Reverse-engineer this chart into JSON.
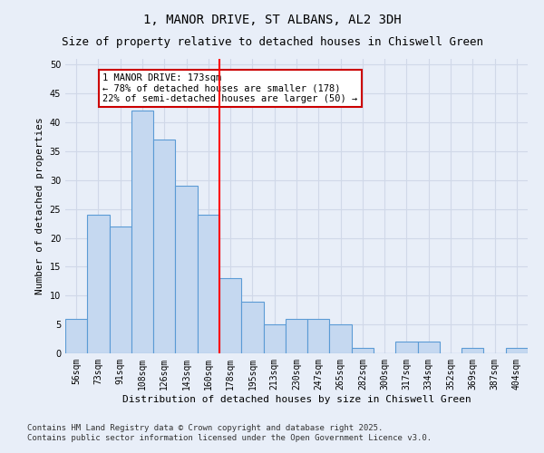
{
  "title1": "1, MANOR DRIVE, ST ALBANS, AL2 3DH",
  "title2": "Size of property relative to detached houses in Chiswell Green",
  "xlabel": "Distribution of detached houses by size in Chiswell Green",
  "ylabel": "Number of detached properties",
  "categories": [
    "56sqm",
    "73sqm",
    "91sqm",
    "108sqm",
    "126sqm",
    "143sqm",
    "160sqm",
    "178sqm",
    "195sqm",
    "213sqm",
    "230sqm",
    "247sqm",
    "265sqm",
    "282sqm",
    "300sqm",
    "317sqm",
    "334sqm",
    "352sqm",
    "369sqm",
    "387sqm",
    "404sqm"
  ],
  "values": [
    6,
    24,
    22,
    42,
    37,
    29,
    24,
    13,
    9,
    5,
    6,
    6,
    5,
    1,
    0,
    2,
    2,
    0,
    1,
    0,
    1
  ],
  "bar_color": "#c5d8f0",
  "bar_edge_color": "#5b9bd5",
  "red_line_index": 7,
  "annotation_text": "1 MANOR DRIVE: 173sqm\n← 78% of detached houses are smaller (178)\n22% of semi-detached houses are larger (50) →",
  "annotation_box_color": "#ffffff",
  "annotation_box_edge": "#cc0000",
  "ylim": [
    0,
    51
  ],
  "yticks": [
    0,
    5,
    10,
    15,
    20,
    25,
    30,
    35,
    40,
    45,
    50
  ],
  "grid_color": "#d0d8e8",
  "bg_color": "#e8eef8",
  "footer1": "Contains HM Land Registry data © Crown copyright and database right 2025.",
  "footer2": "Contains public sector information licensed under the Open Government Licence v3.0.",
  "title1_fontsize": 10,
  "title2_fontsize": 9,
  "tick_fontsize": 7,
  "label_fontsize": 8,
  "footer_fontsize": 6.5,
  "annotation_fontsize": 7.5
}
